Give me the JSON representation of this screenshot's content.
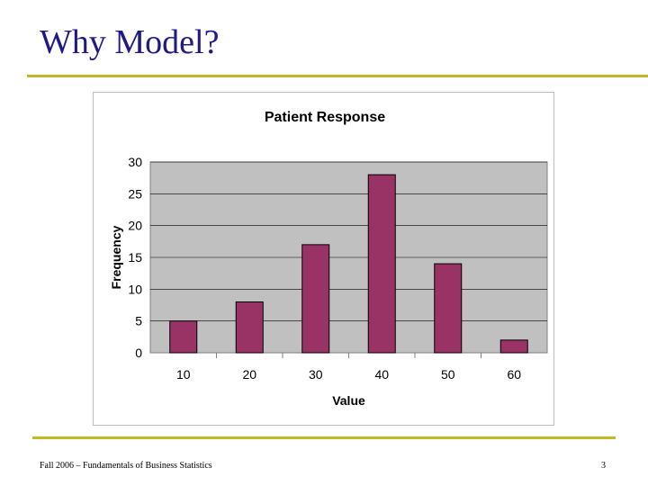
{
  "slide": {
    "title": "Why Model?",
    "footer_left": "Fall 2006 – Fundamentals of Business Statistics",
    "page_number": "3"
  },
  "colors": {
    "title": "#1f1a8a",
    "rule": "#c2b92a",
    "plot_bg": "#c0c0c0",
    "bar": "#993366"
  },
  "chart_data": {
    "type": "bar",
    "title": "Patient Response",
    "xlabel": "Value",
    "ylabel": "Frequency",
    "categories": [
      "10",
      "20",
      "30",
      "40",
      "50",
      "60"
    ],
    "values": [
      5,
      8,
      17,
      28,
      14,
      2
    ],
    "ylim": [
      0,
      30
    ],
    "yticks": [
      0,
      5,
      10,
      15,
      20,
      25,
      30
    ],
    "grid": true,
    "legend": "none"
  }
}
